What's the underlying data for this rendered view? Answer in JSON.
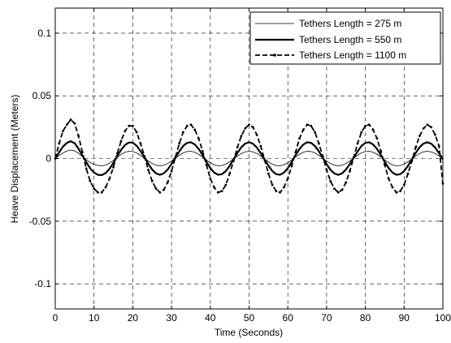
{
  "chart_data": {
    "type": "line",
    "title": "",
    "xlabel": "Time (Seconds)",
    "ylabel": "Heave Displacement (Meters)",
    "xlim": [
      0,
      100
    ],
    "ylim": [
      -0.12,
      0.12
    ],
    "x_ticks": [
      0,
      10,
      20,
      30,
      40,
      50,
      60,
      70,
      80,
      90,
      100
    ],
    "x_tick_labels": [
      "0",
      "10",
      "20",
      "30",
      "40",
      "50",
      "60",
      "70",
      "80",
      "90",
      "100"
    ],
    "y_ticks": [
      -0.1,
      -0.05,
      0,
      0.05,
      0.1
    ],
    "y_tick_labels": [
      "-0.1",
      "-0.05",
      "0",
      "0.05",
      "0.1"
    ],
    "grid": true,
    "grid_style": "dashed",
    "legend_position": "top-right",
    "series": [
      {
        "name": "Tethers Length = 275 m",
        "style": "thin-solid",
        "points": [
          [
            0,
            0
          ],
          [
            1,
            0.0025
          ],
          [
            2,
            0.0045
          ],
          [
            3,
            0.006
          ],
          [
            4,
            0.0068
          ],
          [
            5,
            0.0062
          ],
          [
            6,
            0.0042
          ],
          [
            7,
            0.0015
          ],
          [
            8,
            -0.001
          ],
          [
            9,
            -0.0032
          ],
          [
            10,
            -0.0046
          ],
          [
            11,
            -0.0055
          ],
          [
            12,
            -0.0058
          ],
          [
            13,
            -0.0052
          ],
          [
            14,
            -0.0037
          ],
          [
            15,
            -0.0015
          ],
          [
            16,
            0.001
          ],
          [
            17,
            0.0033
          ],
          [
            18,
            0.005
          ],
          [
            19,
            0.0058
          ],
          [
            20,
            0.0056
          ],
          [
            21,
            0.0044
          ],
          [
            22,
            0.0025
          ],
          [
            23,
            0.0002
          ],
          [
            24,
            -0.002
          ],
          [
            25,
            -0.004
          ],
          [
            26,
            -0.0053
          ],
          [
            27,
            -0.0058
          ],
          [
            28,
            -0.0053
          ],
          [
            29,
            -0.004
          ],
          [
            30,
            -0.002
          ],
          [
            31,
            0.0003
          ],
          [
            32,
            0.0026
          ],
          [
            33,
            0.0045
          ],
          [
            34,
            0.0056
          ],
          [
            35,
            0.0058
          ],
          [
            36,
            0.005
          ],
          [
            37,
            0.0034
          ],
          [
            38,
            0.0012
          ],
          [
            39,
            -0.0012
          ],
          [
            40,
            -0.0034
          ],
          [
            41,
            -0.005
          ],
          [
            42,
            -0.0058
          ],
          [
            43,
            -0.0056
          ],
          [
            44,
            -0.0045
          ],
          [
            45,
            -0.0026
          ],
          [
            46,
            -0.0003
          ],
          [
            47,
            0.002
          ],
          [
            48,
            0.004
          ],
          [
            49,
            0.0053
          ],
          [
            50,
            0.0058
          ],
          [
            51,
            0.0053
          ],
          [
            52,
            0.004
          ],
          [
            53,
            0.002
          ],
          [
            54,
            -0.0003
          ],
          [
            55,
            -0.0026
          ],
          [
            56,
            -0.0045
          ],
          [
            57,
            -0.0056
          ],
          [
            58,
            -0.0058
          ],
          [
            59,
            -0.005
          ],
          [
            60,
            -0.0034
          ],
          [
            61,
            -0.0012
          ],
          [
            62,
            0.0012
          ],
          [
            63,
            0.0034
          ],
          [
            64,
            0.005
          ],
          [
            65,
            0.0058
          ],
          [
            66,
            0.0056
          ],
          [
            67,
            0.0045
          ],
          [
            68,
            0.0026
          ],
          [
            69,
            0.0003
          ],
          [
            70,
            -0.002
          ],
          [
            71,
            -0.004
          ],
          [
            72,
            -0.0053
          ],
          [
            73,
            -0.0058
          ],
          [
            74,
            -0.0053
          ],
          [
            75,
            -0.004
          ],
          [
            76,
            -0.002
          ],
          [
            77,
            0.0003
          ],
          [
            78,
            0.0026
          ],
          [
            79,
            0.0045
          ],
          [
            80,
            0.0056
          ],
          [
            81,
            0.0058
          ],
          [
            82,
            0.005
          ],
          [
            83,
            0.0034
          ],
          [
            84,
            0.0012
          ],
          [
            85,
            -0.0012
          ],
          [
            86,
            -0.0034
          ],
          [
            87,
            -0.005
          ],
          [
            88,
            -0.0058
          ],
          [
            89,
            -0.0056
          ],
          [
            90,
            -0.0045
          ],
          [
            91,
            -0.0026
          ],
          [
            92,
            -0.0003
          ],
          [
            93,
            0.002
          ],
          [
            94,
            0.004
          ],
          [
            95,
            0.0053
          ],
          [
            96,
            0.0058
          ],
          [
            97,
            0.0053
          ],
          [
            98,
            0.004
          ],
          [
            99,
            0.002
          ],
          [
            100,
            -0.0003
          ]
        ]
      },
      {
        "name": "Tethers Length = 550 m",
        "style": "thick-solid",
        "points": [
          [
            0,
            0
          ],
          [
            1,
            0.005
          ],
          [
            2,
            0.0095
          ],
          [
            3,
            0.0125
          ],
          [
            4,
            0.0138
          ],
          [
            5,
            0.0122
          ],
          [
            6,
            0.0078
          ],
          [
            7,
            0.0025
          ],
          [
            8,
            -0.003
          ],
          [
            9,
            -0.0078
          ],
          [
            10,
            -0.0112
          ],
          [
            11,
            -0.013
          ],
          [
            12,
            -0.0132
          ],
          [
            13,
            -0.0116
          ],
          [
            14,
            -0.0082
          ],
          [
            15,
            -0.0035
          ],
          [
            16,
            0.002
          ],
          [
            17,
            0.007
          ],
          [
            18,
            0.0108
          ],
          [
            19,
            0.0128
          ],
          [
            20,
            0.0126
          ],
          [
            21,
            0.0102
          ],
          [
            22,
            0.006
          ],
          [
            23,
            0.001
          ],
          [
            24,
            -0.0043
          ],
          [
            25,
            -0.0088
          ],
          [
            26,
            -0.0118
          ],
          [
            27,
            -0.013
          ],
          [
            28,
            -0.0118
          ],
          [
            29,
            -0.0088
          ],
          [
            30,
            -0.0043
          ],
          [
            31,
            0.0007
          ],
          [
            32,
            0.0057
          ],
          [
            33,
            0.01
          ],
          [
            34,
            0.0125
          ],
          [
            35,
            0.013
          ],
          [
            36,
            0.0112
          ],
          [
            37,
            0.0077
          ],
          [
            38,
            0.0028
          ],
          [
            39,
            -0.0027
          ],
          [
            40,
            -0.0076
          ],
          [
            41,
            -0.0112
          ],
          [
            42,
            -0.013
          ],
          [
            43,
            -0.0125
          ],
          [
            44,
            -0.01
          ],
          [
            45,
            -0.0058
          ],
          [
            46,
            -0.0007
          ],
          [
            47,
            0.0045
          ],
          [
            48,
            0.009
          ],
          [
            49,
            0.0119
          ],
          [
            50,
            0.013
          ],
          [
            51,
            0.0118
          ],
          [
            52,
            0.0088
          ],
          [
            53,
            0.0043
          ],
          [
            54,
            -0.0007
          ],
          [
            55,
            -0.0057
          ],
          [
            56,
            -0.01
          ],
          [
            57,
            -0.0125
          ],
          [
            58,
            -0.013
          ],
          [
            59,
            -0.0112
          ],
          [
            60,
            -0.0077
          ],
          [
            61,
            -0.0028
          ],
          [
            62,
            0.0027
          ],
          [
            63,
            0.0076
          ],
          [
            64,
            0.0112
          ],
          [
            65,
            0.013
          ],
          [
            66,
            0.0125
          ],
          [
            67,
            0.01
          ],
          [
            68,
            0.0058
          ],
          [
            69,
            0.0007
          ],
          [
            70,
            -0.0045
          ],
          [
            71,
            -0.009
          ],
          [
            72,
            -0.0119
          ],
          [
            73,
            -0.013
          ],
          [
            74,
            -0.0118
          ],
          [
            75,
            -0.0088
          ],
          [
            76,
            -0.0043
          ],
          [
            77,
            0.0007
          ],
          [
            78,
            0.0057
          ],
          [
            79,
            0.01
          ],
          [
            80,
            0.0125
          ],
          [
            81,
            0.013
          ],
          [
            82,
            0.0112
          ],
          [
            83,
            0.0077
          ],
          [
            84,
            0.0028
          ],
          [
            85,
            -0.0027
          ],
          [
            86,
            -0.0076
          ],
          [
            87,
            -0.0112
          ],
          [
            88,
            -0.013
          ],
          [
            89,
            -0.0125
          ],
          [
            90,
            -0.01
          ],
          [
            91,
            -0.0058
          ],
          [
            92,
            -0.0007
          ],
          [
            93,
            0.0045
          ],
          [
            94,
            0.009
          ],
          [
            95,
            0.0119
          ],
          [
            96,
            0.013
          ],
          [
            97,
            0.0118
          ],
          [
            98,
            0.0088
          ],
          [
            99,
            0.0043
          ],
          [
            100,
            -0.0007
          ]
        ]
      },
      {
        "name": "Tethers Length = 1100 m",
        "style": "dash-dot-marker",
        "points": [
          [
            0,
            0
          ],
          [
            1,
            0.012
          ],
          [
            2,
            0.022
          ],
          [
            3,
            0.027
          ],
          [
            4,
            0.031
          ],
          [
            5,
            0.028
          ],
          [
            6,
            0.018
          ],
          [
            7,
            0.005
          ],
          [
            8,
            -0.008
          ],
          [
            9,
            -0.018
          ],
          [
            10,
            -0.024
          ],
          [
            11,
            -0.027
          ],
          [
            12,
            -0.027
          ],
          [
            13,
            -0.023
          ],
          [
            14,
            -0.016
          ],
          [
            15,
            -0.007
          ],
          [
            16,
            0.004
          ],
          [
            17,
            0.014
          ],
          [
            18,
            0.022
          ],
          [
            19,
            0.026
          ],
          [
            20,
            0.026
          ],
          [
            21,
            0.021
          ],
          [
            22,
            0.012
          ],
          [
            23,
            0.002
          ],
          [
            24,
            -0.009
          ],
          [
            25,
            -0.018
          ],
          [
            26,
            -0.024
          ],
          [
            27,
            -0.027
          ],
          [
            28,
            -0.025
          ],
          [
            29,
            -0.019
          ],
          [
            30,
            -0.01
          ],
          [
            31,
            0.001
          ],
          [
            32,
            0.012
          ],
          [
            33,
            0.021
          ],
          [
            34,
            0.026
          ],
          [
            35,
            0.027
          ],
          [
            36,
            0.023
          ],
          [
            37,
            0.016
          ],
          [
            38,
            0.006
          ],
          [
            39,
            -0.005
          ],
          [
            40,
            -0.016
          ],
          [
            41,
            -0.023
          ],
          [
            42,
            -0.027
          ],
          [
            43,
            -0.026
          ],
          [
            44,
            -0.021
          ],
          [
            45,
            -0.012
          ],
          [
            46,
            -0.002
          ],
          [
            47,
            0.009
          ],
          [
            48,
            0.018
          ],
          [
            49,
            0.024
          ],
          [
            50,
            0.027
          ],
          [
            51,
            0.025
          ],
          [
            52,
            0.019
          ],
          [
            53,
            0.01
          ],
          [
            54,
            -0.001
          ],
          [
            55,
            -0.012
          ],
          [
            56,
            -0.021
          ],
          [
            57,
            -0.026
          ],
          [
            58,
            -0.027
          ],
          [
            59,
            -0.023
          ],
          [
            60,
            -0.016
          ],
          [
            61,
            -0.006
          ],
          [
            62,
            0.005
          ],
          [
            63,
            0.016
          ],
          [
            64,
            0.023
          ],
          [
            65,
            0.027
          ],
          [
            66,
            0.026
          ],
          [
            67,
            0.021
          ],
          [
            68,
            0.012
          ],
          [
            69,
            0.002
          ],
          [
            70,
            -0.009
          ],
          [
            71,
            -0.018
          ],
          [
            72,
            -0.024
          ],
          [
            73,
            -0.027
          ],
          [
            74,
            -0.025
          ],
          [
            75,
            -0.019
          ],
          [
            76,
            -0.01
          ],
          [
            77,
            0.001
          ],
          [
            78,
            0.012
          ],
          [
            79,
            0.021
          ],
          [
            80,
            0.026
          ],
          [
            81,
            0.027
          ],
          [
            82,
            0.023
          ],
          [
            83,
            0.016
          ],
          [
            84,
            0.006
          ],
          [
            85,
            -0.005
          ],
          [
            86,
            -0.016
          ],
          [
            87,
            -0.023
          ],
          [
            88,
            -0.027
          ],
          [
            89,
            -0.026
          ],
          [
            90,
            -0.021
          ],
          [
            91,
            -0.012
          ],
          [
            92,
            -0.002
          ],
          [
            93,
            0.009
          ],
          [
            94,
            0.018
          ],
          [
            95,
            0.024
          ],
          [
            96,
            0.027
          ],
          [
            97,
            0.025
          ],
          [
            98,
            0.019
          ],
          [
            99,
            0.01
          ],
          [
            100,
            -0.02
          ]
        ]
      }
    ]
  }
}
